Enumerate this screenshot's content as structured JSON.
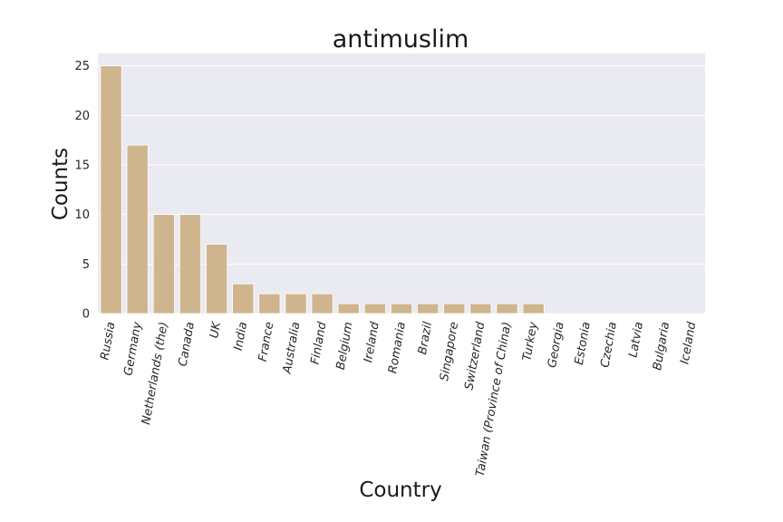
{
  "chart_data": {
    "type": "bar",
    "title": "antimuslim",
    "xlabel": "Country",
    "ylabel": "Counts",
    "categories": [
      "Russia",
      "Germany",
      "Netherlands (the)",
      "Canada",
      "UK",
      "India",
      "France",
      "Australia",
      "Finland",
      "Belgium",
      "Ireland",
      "Romania",
      "Brazil",
      "Singapore",
      "Switzerland",
      "Taiwan (Province of China)",
      "Turkey",
      "Georgia",
      "Estonia",
      "Czechia",
      "Latvia",
      "Bulgaria",
      "Iceland"
    ],
    "values": [
      25,
      17,
      10,
      10,
      7,
      3,
      2,
      2,
      2,
      1,
      1,
      1,
      1,
      1,
      1,
      1,
      1,
      0,
      0,
      0,
      0,
      0,
      0
    ],
    "ylim": [
      0,
      26.25
    ],
    "yticks": [
      "0",
      "5",
      "10",
      "15",
      "20",
      "25"
    ],
    "grid": true,
    "colors": {
      "bar": "#cfb58e",
      "plot_bg": "#eaeaf2",
      "grid": "#ffffff"
    }
  }
}
